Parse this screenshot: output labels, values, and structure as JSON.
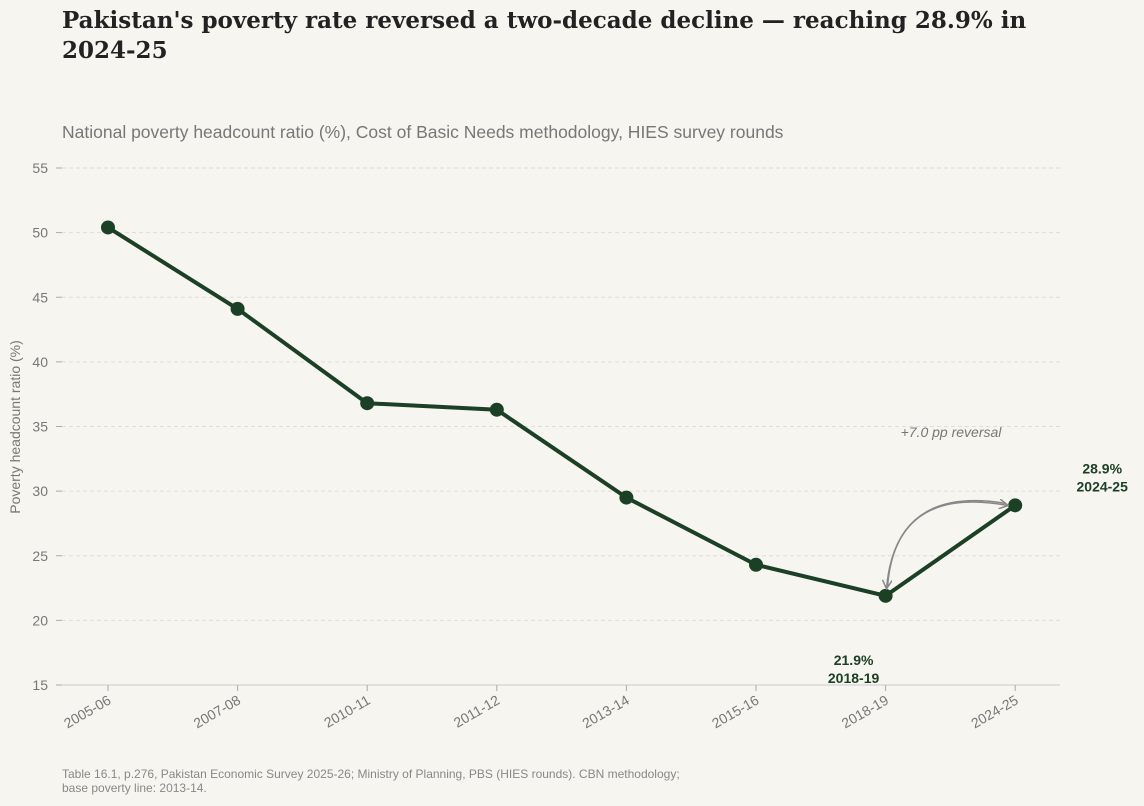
{
  "chart_data": {
    "type": "line",
    "title": "Pakistan's poverty rate reversed a two-decade decline — reaching 28.9% in 2024-25",
    "subtitle": "National poverty headcount ratio (%), Cost of Basic Needs methodology, HIES survey rounds",
    "y_label": "Poverty headcount ratio (%)",
    "categories": [
      "2005-06",
      "2007-08",
      "2010-11",
      "2011-12",
      "2013-14",
      "2015-16",
      "2018-19",
      "2024-25"
    ],
    "series": [
      {
        "name": "Poverty headcount ratio",
        "color": "#1c4025",
        "values": [
          50.4,
          44.1,
          36.8,
          36.3,
          29.5,
          24.3,
          21.9,
          28.9
        ],
        "value_labels": [
          null,
          null,
          null,
          null,
          null,
          null,
          "21.9%",
          "28.9%"
        ]
      }
    ],
    "annotation": "+7.0 pp reversal",
    "ylim": [
      15,
      55
    ],
    "yticks": [
      15,
      20,
      25,
      30,
      35,
      40,
      45,
      50,
      55
    ],
    "grid": true,
    "source": "Table 16.1, p.276, Pakistan Economic Survey 2025-26; Ministry of Planning, PBS (HIES rounds). CBN methodology; base poverty line: 2013-14."
  }
}
